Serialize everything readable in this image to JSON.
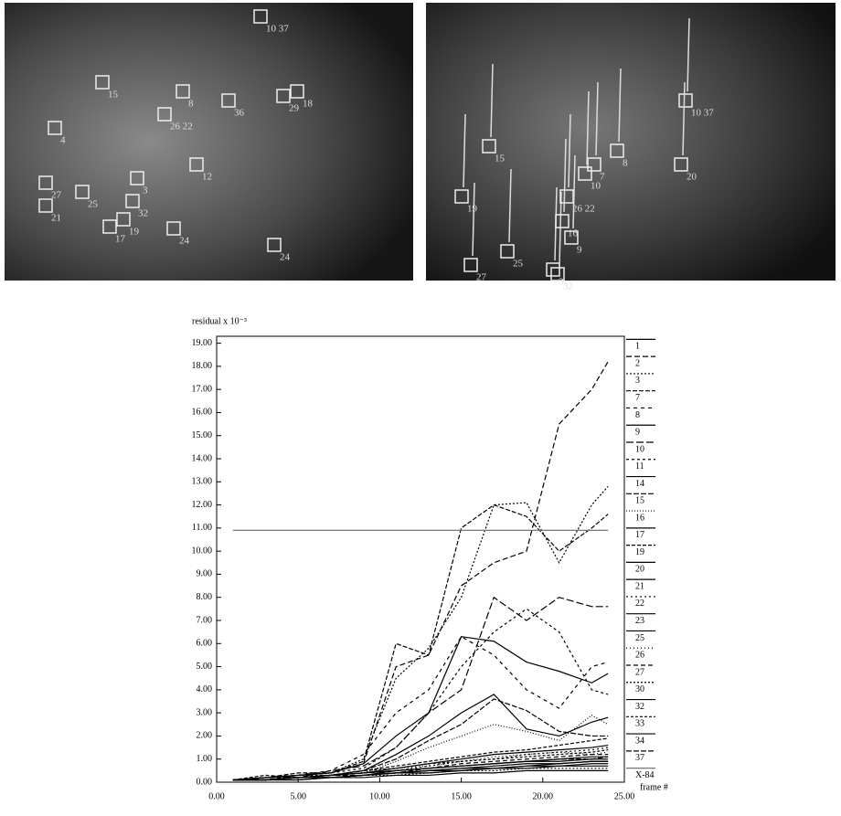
{
  "photos": [
    {
      "labels": [
        "10 37",
        "15",
        "24",
        "36",
        "29",
        "18",
        "12",
        "3",
        "32",
        "25",
        "17",
        "19",
        "21",
        "24",
        "27",
        "26 22",
        "8",
        "4"
      ]
    },
    {
      "labels": [
        "10 37",
        "20",
        "15",
        "19",
        "25",
        "3",
        "32",
        "26 22",
        "8",
        "9",
        "7",
        "10",
        "16",
        "27"
      ]
    }
  ],
  "chart_data": {
    "type": "line",
    "y_label": "residual x 10⁻³",
    "x_label": "frame #",
    "x": [
      1,
      3,
      5,
      7,
      9,
      11,
      13,
      15,
      17,
      19,
      21,
      23,
      24
    ],
    "xlim": [
      0,
      25
    ],
    "ylim": [
      0,
      19.3
    ],
    "xticks": [
      {
        "value": 0,
        "label": "0.00"
      },
      {
        "value": 5,
        "label": "5.00"
      },
      {
        "value": 10,
        "label": "10.00"
      },
      {
        "value": 15,
        "label": "15.00"
      },
      {
        "value": 20,
        "label": "20.00"
      },
      {
        "value": 25,
        "label": "25.00"
      }
    ],
    "yticks": [
      {
        "value": 0,
        "label": "0.00"
      },
      {
        "value": 1,
        "label": "1.00"
      },
      {
        "value": 2,
        "label": "2.00"
      },
      {
        "value": 3,
        "label": "3.00"
      },
      {
        "value": 4,
        "label": "4.00"
      },
      {
        "value": 5,
        "label": "5.00"
      },
      {
        "value": 6,
        "label": "6.00"
      },
      {
        "value": 7,
        "label": "7.00"
      },
      {
        "value": 8,
        "label": "8.00"
      },
      {
        "value": 9,
        "label": "9.00"
      },
      {
        "value": 10,
        "label": "10.00"
      },
      {
        "value": 11,
        "label": "11.00"
      },
      {
        "value": 12,
        "label": "12.00"
      },
      {
        "value": 13,
        "label": "13.00"
      },
      {
        "value": 14,
        "label": "14.00"
      },
      {
        "value": 15,
        "label": "15.00"
      },
      {
        "value": 16,
        "label": "16.00"
      },
      {
        "value": 17,
        "label": "17.00"
      },
      {
        "value": 18,
        "label": "18.00"
      },
      {
        "value": 19,
        "label": "19.00"
      }
    ],
    "legend": "right",
    "series": [
      {
        "name": "1",
        "color": "#000",
        "dash": "none",
        "values": [
          0.1,
          0.1,
          0.2,
          0.3,
          0.4,
          0.5,
          0.6,
          0.7,
          0.8,
          0.9,
          0.9,
          1.0,
          1.0
        ]
      },
      {
        "name": "2",
        "color": "#000",
        "dash": "6 3",
        "values": [
          0.1,
          0.2,
          0.3,
          0.4,
          0.8,
          5.0,
          5.5,
          8.5,
          9.5,
          10.0,
          15.5,
          17.0,
          18.2
        ]
      },
      {
        "name": "3",
        "color": "#000",
        "dash": "2 2",
        "values": [
          0.1,
          0.2,
          0.3,
          0.4,
          1.0,
          4.5,
          5.8,
          8.0,
          12.0,
          12.1,
          9.5,
          12.0,
          12.8
        ]
      },
      {
        "name": "7",
        "color": "#000",
        "dash": "5 2",
        "values": [
          0.1,
          0.2,
          0.4,
          0.4,
          0.9,
          6.0,
          5.5,
          11.0,
          12.0,
          11.5,
          10.0,
          11.0,
          11.6
        ]
      },
      {
        "name": "8",
        "color": "#000",
        "dash": "4 4",
        "values": [
          0.1,
          0.1,
          0.3,
          0.5,
          1.2,
          3.0,
          4.0,
          6.3,
          5.5,
          4.0,
          3.2,
          5.0,
          5.2
        ]
      },
      {
        "name": "9",
        "color": "#000",
        "dash": "none",
        "values": [
          0.1,
          0.2,
          0.3,
          0.4,
          0.8,
          2.0,
          3.0,
          6.3,
          6.1,
          5.2,
          4.8,
          4.3,
          4.7
        ]
      },
      {
        "name": "10",
        "color": "#000",
        "dash": "8 3",
        "values": [
          0.1,
          0.1,
          0.2,
          0.5,
          0.7,
          1.5,
          3.0,
          4.0,
          8.0,
          7.0,
          8.0,
          7.6,
          7.6
        ]
      },
      {
        "name": "11",
        "color": "#000",
        "dash": "3 3",
        "values": [
          0.1,
          0.2,
          0.3,
          0.4,
          0.6,
          1.5,
          3.0,
          5.0,
          6.5,
          7.5,
          6.5,
          4.0,
          3.8
        ]
      },
      {
        "name": "14",
        "color": "#000",
        "dash": "none",
        "values": [
          0.1,
          0.1,
          0.2,
          0.3,
          0.5,
          1.2,
          2.0,
          3.0,
          3.8,
          2.3,
          2.0,
          2.6,
          2.8
        ]
      },
      {
        "name": "15",
        "color": "#000",
        "dash": "6 2",
        "values": [
          0.1,
          0.1,
          0.2,
          0.3,
          0.5,
          1.0,
          1.8,
          2.5,
          3.6,
          3.1,
          2.2,
          2.0,
          2.0
        ]
      },
      {
        "name": "16",
        "color": "#000",
        "dash": "1 2",
        "values": [
          0.1,
          0.2,
          0.2,
          0.3,
          0.4,
          0.9,
          1.5,
          2.0,
          2.5,
          2.2,
          1.8,
          2.9,
          2.5
        ]
      },
      {
        "name": "17",
        "color": "#000",
        "dash": "none",
        "values": [
          0.1,
          0.1,
          0.2,
          0.3,
          0.4,
          0.6,
          0.8,
          1.0,
          1.2,
          1.3,
          1.4,
          1.5,
          1.6
        ]
      },
      {
        "name": "19",
        "color": "#000",
        "dash": "4 2",
        "values": [
          0.1,
          0.3,
          0.2,
          0.3,
          0.5,
          0.7,
          0.9,
          1.1,
          1.3,
          1.4,
          1.6,
          1.8,
          1.9
        ]
      },
      {
        "name": "20",
        "color": "#000",
        "dash": "none",
        "values": [
          0.1,
          0.1,
          0.2,
          0.2,
          0.3,
          0.5,
          0.6,
          0.7,
          0.8,
          0.9,
          1.0,
          1.1,
          1.1
        ]
      },
      {
        "name": "21",
        "color": "#000",
        "dash": "none",
        "values": [
          0.1,
          0.1,
          0.2,
          0.2,
          0.3,
          0.4,
          0.5,
          0.6,
          0.7,
          0.8,
          0.8,
          0.9,
          0.9
        ]
      },
      {
        "name": "22",
        "color": "#000",
        "dash": "2 3",
        "values": [
          0.1,
          0.2,
          0.2,
          0.3,
          0.4,
          0.5,
          0.7,
          0.9,
          1.0,
          1.2,
          1.3,
          1.4,
          1.5
        ]
      },
      {
        "name": "23",
        "color": "#000",
        "dash": "none",
        "values": [
          0.1,
          0.1,
          0.1,
          0.2,
          0.3,
          0.4,
          0.5,
          0.6,
          0.6,
          0.7,
          0.7,
          0.8,
          0.8
        ]
      },
      {
        "name": "25",
        "color": "#000",
        "dash": "none",
        "values": [
          0.1,
          0.1,
          0.2,
          0.2,
          0.3,
          0.4,
          0.4,
          0.5,
          0.6,
          0.6,
          0.7,
          0.7,
          0.7
        ]
      },
      {
        "name": "26",
        "color": "#000",
        "dash": "1 3",
        "values": [
          0.1,
          0.1,
          0.2,
          0.3,
          0.4,
          0.6,
          0.7,
          0.9,
          1.1,
          1.2,
          1.3,
          1.2,
          1.3
        ]
      },
      {
        "name": "27",
        "color": "#000",
        "dash": "5 3",
        "values": [
          0.1,
          0.2,
          0.2,
          0.3,
          0.4,
          0.5,
          0.6,
          0.8,
          0.9,
          1.0,
          1.1,
          1.2,
          1.2
        ]
      },
      {
        "name": "30",
        "color": "#000",
        "dash": "2 2",
        "values": [
          0.1,
          0.1,
          0.2,
          0.2,
          0.3,
          0.3,
          0.4,
          0.5,
          0.5,
          0.6,
          0.6,
          0.6,
          0.6
        ]
      },
      {
        "name": "32",
        "color": "#000",
        "dash": "none",
        "values": [
          0.1,
          0.1,
          0.1,
          0.2,
          0.2,
          0.3,
          0.3,
          0.4,
          0.4,
          0.5,
          0.5,
          0.5,
          0.5
        ]
      },
      {
        "name": "33",
        "color": "#000",
        "dash": "3 2",
        "values": [
          0.1,
          0.2,
          0.3,
          0.3,
          0.5,
          0.6,
          0.8,
          0.9,
          1.0,
          1.1,
          1.2,
          1.3,
          1.4
        ]
      },
      {
        "name": "34",
        "color": "#000",
        "dash": "none",
        "values": [
          0.1,
          0.1,
          0.2,
          0.2,
          0.3,
          0.4,
          0.5,
          0.5,
          0.6,
          0.7,
          0.8,
          0.9,
          0.9
        ]
      },
      {
        "name": "37",
        "color": "#000",
        "dash": "6 2",
        "values": [
          0.1,
          0.1,
          0.2,
          0.3,
          0.3,
          0.4,
          0.6,
          0.7,
          0.8,
          0.9,
          1.0,
          1.0,
          1.1
        ]
      },
      {
        "name": "X-84",
        "color": "#777",
        "dash": "none",
        "values": [
          10.9,
          10.9,
          10.9,
          10.9,
          10.9,
          10.9,
          10.9,
          10.9,
          10.9,
          10.9,
          10.9,
          10.9,
          10.9
        ]
      }
    ]
  }
}
